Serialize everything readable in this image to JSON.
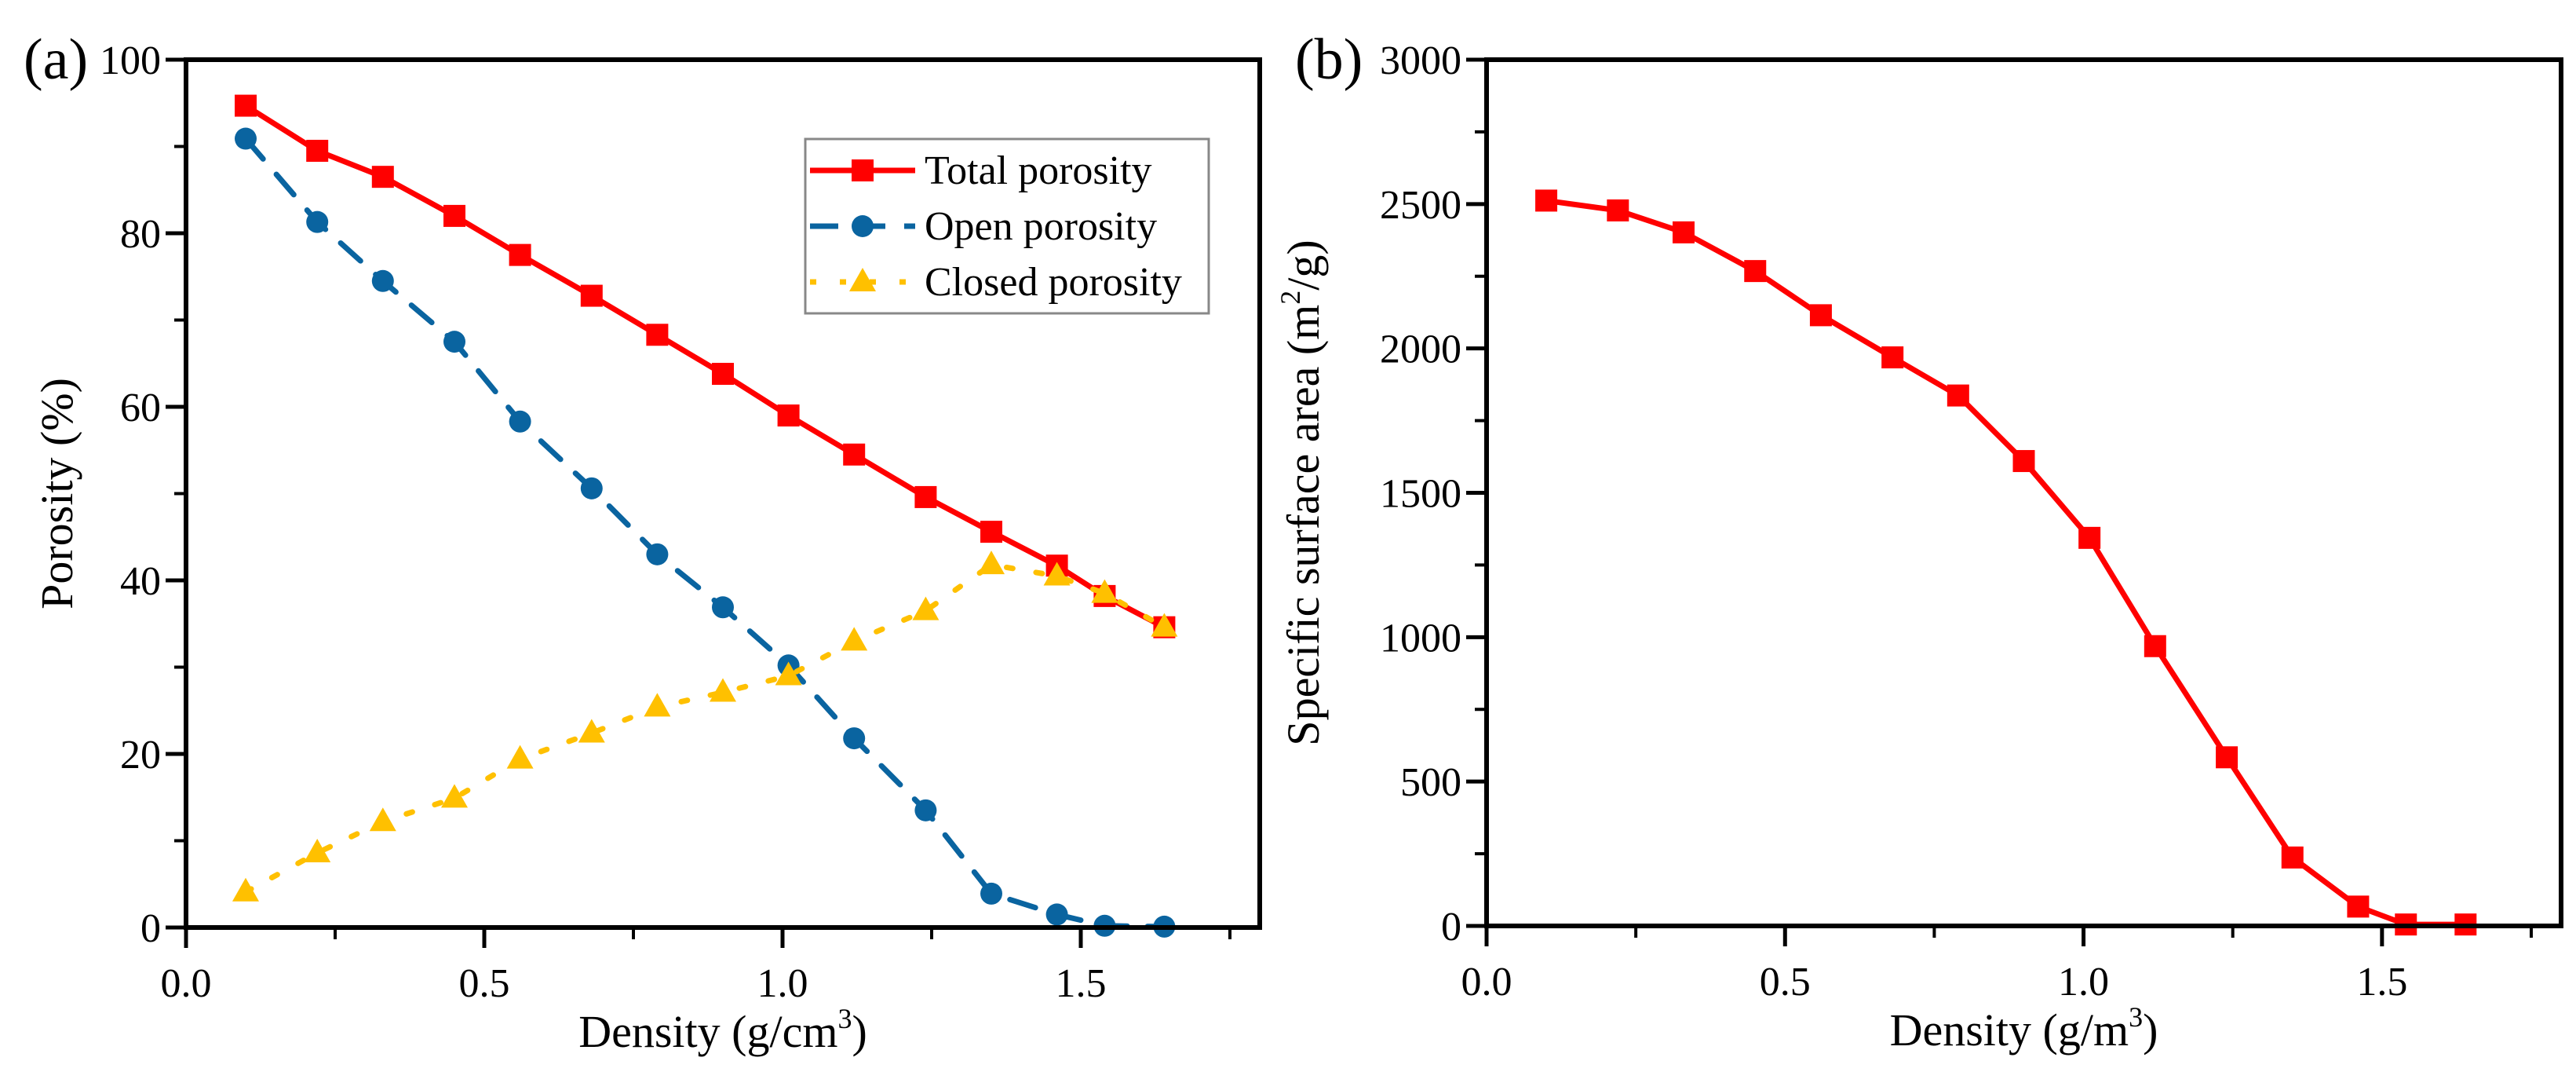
{
  "chart_data": [
    {
      "type": "line",
      "panel_label": "(a)",
      "xlabel": "Density (g/cm",
      "xlabel_sup": "3",
      "xlabel_end": ")",
      "ylabel": "Porosity (%)",
      "xlim": [
        0,
        1.8
      ],
      "ylim": [
        0,
        100
      ],
      "xticks": [
        "0.0",
        "0.5",
        "1.0",
        "1.5"
      ],
      "yticks": [
        "0",
        "20",
        "40",
        "60",
        "80",
        "100"
      ],
      "grid": false,
      "legend_position": "top-right",
      "x": [
        0.1,
        0.22,
        0.33,
        0.45,
        0.56,
        0.68,
        0.79,
        0.9,
        1.01,
        1.12,
        1.24,
        1.35,
        1.46,
        1.54,
        1.64
      ],
      "series": [
        {
          "name": "Total porosity",
          "color": "#ff0000",
          "marker": "square",
          "style": "solid",
          "values": [
            94.7,
            89.5,
            86.5,
            82.0,
            77.5,
            72.8,
            68.3,
            63.8,
            59.0,
            54.5,
            49.6,
            45.6,
            41.7,
            38.2,
            34.6
          ]
        },
        {
          "name": "Open porosity",
          "color": "#0a64a0",
          "marker": "circle",
          "style": "dashed",
          "values": [
            90.9,
            81.3,
            74.5,
            67.5,
            58.3,
            50.6,
            43.0,
            36.9,
            30.2,
            21.8,
            13.5,
            3.9,
            1.5,
            0.2,
            0.1
          ]
        },
        {
          "name": "Closed porosity",
          "color": "#ffc000",
          "marker": "triangle",
          "style": "dotted",
          "values": [
            4.1,
            8.6,
            12.2,
            14.9,
            19.4,
            22.4,
            25.4,
            27.1,
            29.0,
            33.0,
            36.5,
            41.8,
            40.5,
            38.5,
            34.6
          ]
        }
      ]
    },
    {
      "type": "line",
      "panel_label": "(b)",
      "xlabel": "Density (g/m",
      "xlabel_sup": "3",
      "xlabel_end": ")",
      "ylabel": "Specific surface area (m",
      "ylabel_sup": "2",
      "ylabel_end": "/g)",
      "xlim": [
        0,
        1.8
      ],
      "ylim": [
        0,
        3000
      ],
      "xticks": [
        "0.0",
        "0.5",
        "1.0",
        "1.5"
      ],
      "yticks": [
        "0",
        "500",
        "1000",
        "1500",
        "2000",
        "2500",
        "3000"
      ],
      "grid": false,
      "x": [
        0.1,
        0.22,
        0.33,
        0.45,
        0.56,
        0.68,
        0.79,
        0.9,
        1.01,
        1.12,
        1.24,
        1.35,
        1.46,
        1.54,
        1.64
      ],
      "series": [
        {
          "name": "Specific surface area",
          "color": "#ff0000",
          "marker": "square",
          "style": "solid",
          "values": [
            2512,
            2478,
            2402,
            2268,
            2115,
            1969,
            1837,
            1610,
            1344,
            969,
            584,
            237,
            67,
            5,
            5
          ]
        }
      ]
    }
  ]
}
